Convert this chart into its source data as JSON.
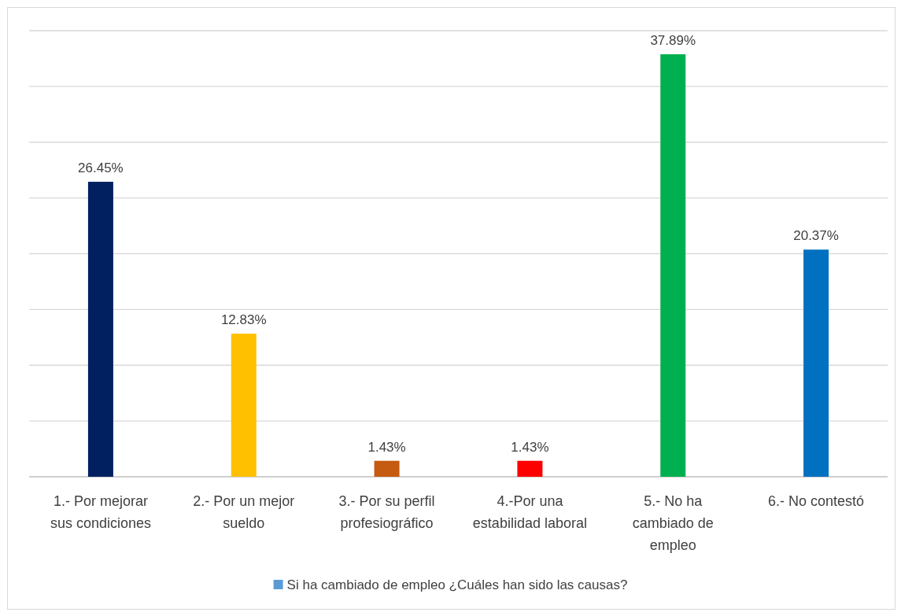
{
  "chart_data": {
    "type": "bar",
    "categories": [
      "1.- Por mejorar sus condiciones",
      "2.- Por un mejor sueldo",
      "3.- Por su perfil profesiográfico",
      "4.-Por una estabilidad laboral",
      "5.- No ha cambiado de empleo",
      "6.- No contestó"
    ],
    "series": [
      {
        "name": "Si ha cambiado de empleo ¿Cuáles han sido las causas?",
        "color": "#5b9bd5",
        "colors": [
          "#002060",
          "#ffc000",
          "#c55a11",
          "#ff0000",
          "#00b050",
          "#0070c0"
        ],
        "values": [
          26.45,
          12.83,
          1.43,
          1.43,
          37.89,
          20.37
        ],
        "value_labels": [
          "26.45%",
          "12.83%",
          "1.43%",
          "1.43%",
          "37.89%",
          "20.37%"
        ]
      }
    ],
    "ylim": [
      0,
      40
    ],
    "yticks": [
      {
        "value": 0,
        "label": null
      },
      {
        "value": 5,
        "label": null
      },
      {
        "value": 10,
        "label": null
      },
      {
        "value": 15,
        "label": null
      },
      {
        "value": 20,
        "label": null
      },
      {
        "value": 25,
        "label": null
      },
      {
        "value": 30,
        "label": null
      },
      {
        "value": 35,
        "label": null
      },
      {
        "value": 40,
        "label": null
      }
    ],
    "grid": "y",
    "legend": "bottom",
    "tick_labels": "x"
  }
}
